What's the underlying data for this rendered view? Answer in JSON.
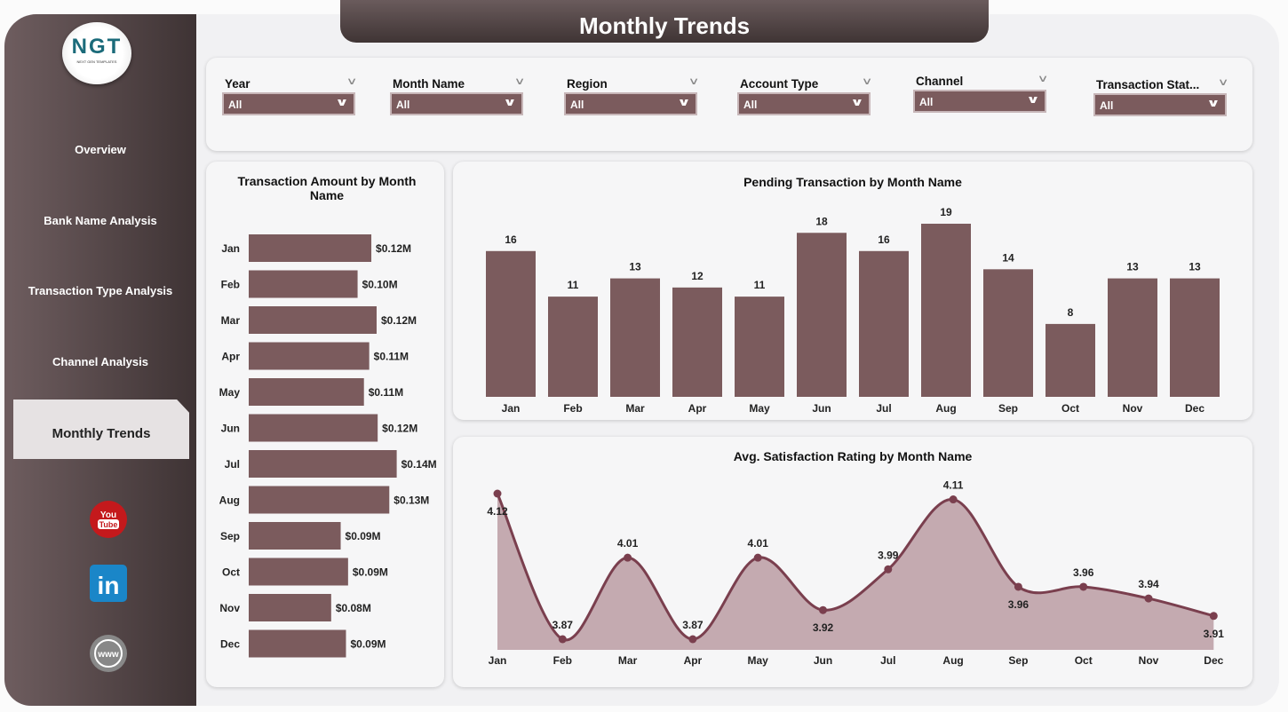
{
  "header": {
    "title": "Monthly Trends"
  },
  "logo": {
    "text": "NGT",
    "subtext": "NEXT GEN TEMPLATES"
  },
  "sidebar": {
    "items": [
      {
        "label": "Overview"
      },
      {
        "label": "Bank Name Analysis"
      },
      {
        "label": "Transaction Type Analysis"
      },
      {
        "label": "Channel Analysis"
      },
      {
        "label": "Monthly Trends",
        "active": true
      }
    ],
    "social": [
      {
        "icon": "youtube-icon",
        "label": "You Tube"
      },
      {
        "icon": "linkedin-icon",
        "label": "in"
      },
      {
        "icon": "globe-icon",
        "label": "www"
      }
    ]
  },
  "filters": [
    {
      "label": "Year",
      "value": "All"
    },
    {
      "label": "Month Name",
      "value": "All"
    },
    {
      "label": "Region",
      "value": "All"
    },
    {
      "label": "Account Type",
      "value": "All"
    },
    {
      "label": "Channel",
      "value": "All"
    },
    {
      "label": "Transaction Stat...",
      "value": "All"
    }
  ],
  "colors": {
    "accent": "#7b5b5d",
    "line": "#7a3f4e",
    "area": "#c4aab0",
    "sidebar": "#4f4243"
  },
  "chart_data": [
    {
      "type": "bar",
      "orientation": "horizontal",
      "title": "Transaction Amount by Month Name",
      "categories": [
        "Jan",
        "Feb",
        "Mar",
        "Apr",
        "May",
        "Jun",
        "Jul",
        "Aug",
        "Sep",
        "Oct",
        "Nov",
        "Dec"
      ],
      "values": [
        0.116,
        0.103,
        0.121,
        0.114,
        0.109,
        0.122,
        0.14,
        0.133,
        0.087,
        0.094,
        0.078,
        0.092
      ],
      "labels": [
        "$0.12M",
        "$0.10M",
        "$0.12M",
        "$0.11M",
        "$0.11M",
        "$0.12M",
        "$0.14M",
        "$0.13M",
        "$0.09M",
        "$0.09M",
        "$0.08M",
        "$0.09M"
      ],
      "unit": "$M"
    },
    {
      "type": "bar",
      "title": "Pending Transaction by Month Name",
      "categories": [
        "Jan",
        "Feb",
        "Mar",
        "Apr",
        "May",
        "Jun",
        "Jul",
        "Aug",
        "Sep",
        "Oct",
        "Nov",
        "Dec"
      ],
      "values": [
        16,
        11,
        13,
        12,
        11,
        18,
        16,
        19,
        14,
        8,
        13,
        13
      ]
    },
    {
      "type": "area",
      "title": "Avg. Satisfaction Rating by Month Name",
      "categories": [
        "Jan",
        "Feb",
        "Mar",
        "Apr",
        "May",
        "Jun",
        "Jul",
        "Aug",
        "Sep",
        "Oct",
        "Nov",
        "Dec"
      ],
      "values": [
        4.12,
        3.87,
        4.01,
        3.87,
        4.01,
        3.92,
        3.99,
        4.11,
        3.96,
        3.96,
        3.94,
        3.91
      ]
    }
  ]
}
